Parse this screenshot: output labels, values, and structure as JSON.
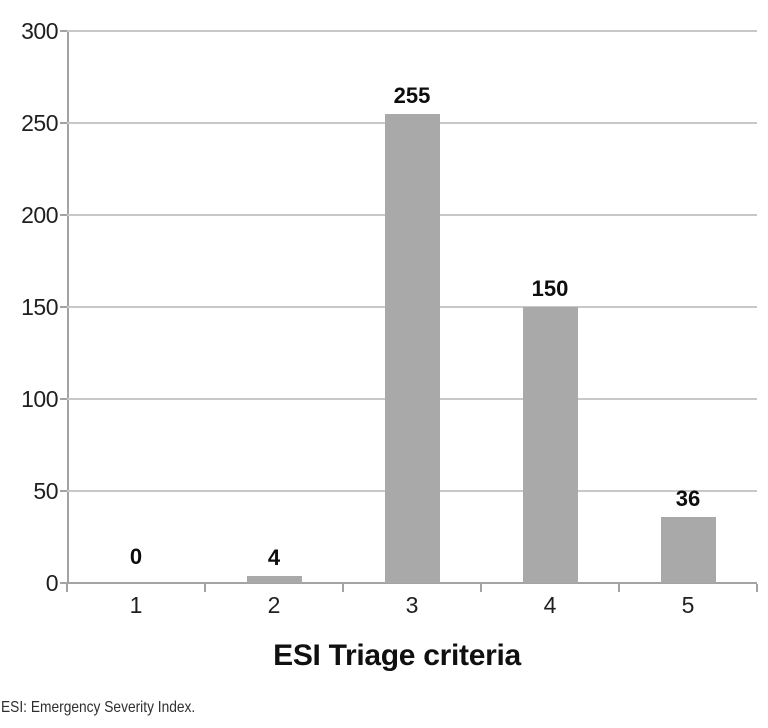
{
  "chart_data": {
    "type": "bar",
    "categories": [
      "1",
      "2",
      "3",
      "4",
      "5"
    ],
    "values": [
      0,
      4,
      255,
      150,
      36
    ],
    "value_labels": [
      "0",
      "4",
      "255",
      "150",
      "36"
    ],
    "title": "",
    "xlabel": "ESI Triage criteria",
    "ylabel": "",
    "ylim": [
      0,
      300
    ],
    "yticks": [
      0,
      50,
      100,
      150,
      200,
      250,
      300
    ],
    "grid": true,
    "legend": "none",
    "colors": {
      "bar": "#a9a9a9",
      "gridline": "#c8c8c8",
      "axis": "#a3a3a3",
      "tick_label": "#1f1f1f",
      "value_label": "#0d0d0d"
    }
  },
  "footnote": "ESI: Emergency Severity Index."
}
